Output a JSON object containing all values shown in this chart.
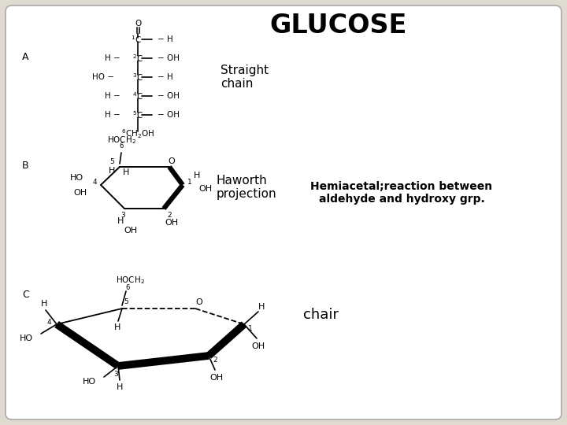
{
  "title": "GLUCOSE",
  "title_fontsize": 24,
  "title_fontweight": "bold",
  "bg_color": "#e0dbd0",
  "panel_color": "#ffffff",
  "label_A": "A",
  "label_B": "B",
  "label_C": "C",
  "straight_chain_label": "Straight\nchain",
  "haworth_label": "Haworth\nprojection",
  "chair_label": "chair",
  "hemiacetal_text": "Hemiacetal;reaction between\naldehyde and hydroxy grp.",
  "hemiacetal_fontsize": 10,
  "hemiacetal_fontweight": "bold"
}
